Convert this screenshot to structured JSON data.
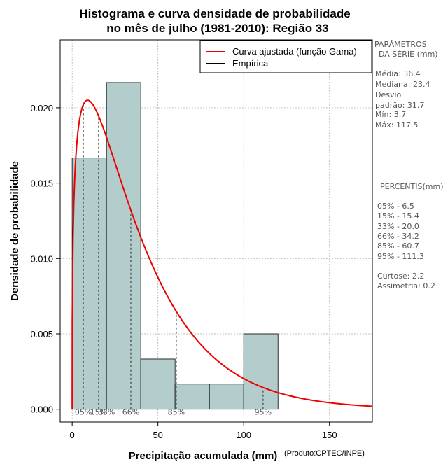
{
  "chart_data": {
    "type": "histogram",
    "title_line1": "Histograma e curva densidade de probabilidade",
    "title_line2": "no mês de julho (1981-2010): Região 33",
    "xlabel": "Precipitação acumulada (mm)",
    "ylabel": "Densidade de probabilidade",
    "credit": "(Produto:CPTEC/INPE)",
    "xlim": [
      -7,
      175
    ],
    "ylim": [
      -0.00085,
      0.0245
    ],
    "x_ticks": [
      0,
      50,
      100,
      150
    ],
    "y_ticks": [
      0.0,
      0.005,
      0.01,
      0.015,
      0.02
    ],
    "y_tick_labels": [
      "0.000",
      "0.005",
      "0.010",
      "0.015",
      "0.020"
    ],
    "bins": [
      {
        "x0": 0,
        "x1": 20,
        "density": 0.01667
      },
      {
        "x0": 20,
        "x1": 40,
        "density": 0.02167
      },
      {
        "x0": 40,
        "x1": 60,
        "density": 0.00333
      },
      {
        "x0": 60,
        "x1": 80,
        "density": 0.00167
      },
      {
        "x0": 80,
        "x1": 100,
        "density": 0.00167
      },
      {
        "x0": 100,
        "x1": 120,
        "density": 0.005
      }
    ],
    "gamma_fit": {
      "shape": 1.3,
      "scale": 30,
      "peak_density": 0.0205
    },
    "percentile_lines": [
      {
        "label": "05%",
        "value": 6.5
      },
      {
        "label": "15%",
        "value": 15.4
      },
      {
        "label": "33%",
        "value": 20.0
      },
      {
        "label": "66%",
        "value": 34.2
      },
      {
        "label": "85%",
        "value": 60.7
      },
      {
        "label": "95%",
        "value": 111.3
      }
    ],
    "legend": [
      {
        "label": "Curva ajustada (função Gama)",
        "color": "#ee0000"
      },
      {
        "label": "Empírica",
        "color": "#000000"
      }
    ],
    "bar_fill": "#b3cccc",
    "curve_color": "#ee0000",
    "grid": true
  },
  "side_panel": {
    "params_title_1": "PARÂMETROS",
    "params_title_2": "DA SÉRIE (mm)",
    "stats": [
      "Média:  36.4",
      "Mediana:  23.4",
      "Desvio",
      "padrão:  31.7",
      "Mín:  3.7",
      "Máx:  117.5"
    ],
    "percentis_title": "PERCENTIS(mm)",
    "percentis": [
      "05% -   6.5",
      "15% -  15.4",
      "33% -  20.0",
      "66% -  34.2",
      "85% -  60.7",
      "95% -  111.3"
    ],
    "curtose": "Curtose:  2.2",
    "assimetria": "Assimetria:  0.2"
  }
}
